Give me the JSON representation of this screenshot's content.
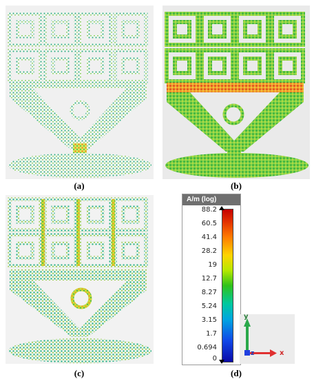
{
  "captions": [
    "(a)",
    "(b)",
    "(c)",
    "(d)"
  ],
  "legend": {
    "title": "A/m (log)",
    "ticks": [
      "88.2",
      "60.5",
      "41.4",
      "28.2",
      "19",
      "12.7",
      "8.27",
      "5.24",
      "3.15",
      "1.7",
      "0.694",
      "0"
    ]
  },
  "axes": {
    "y": "y",
    "z": "z",
    "x": "x"
  },
  "colors": {
    "low": "#0a0aa8",
    "mid": "#2fc21a",
    "high": "#c40000"
  }
}
